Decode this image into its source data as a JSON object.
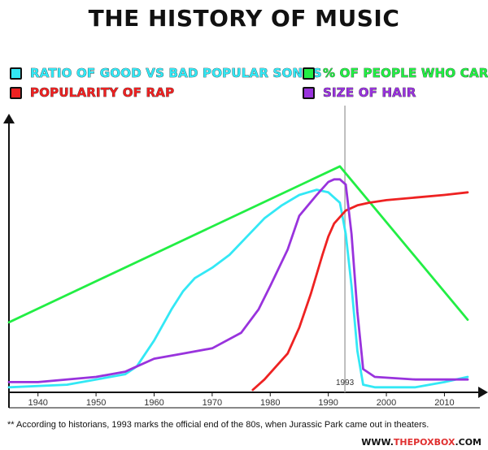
{
  "chart_data": {
    "type": "line",
    "title": "THE HISTORY OF MUSIC",
    "xlabel": "",
    "ylabel": "",
    "xlim": [
      1935,
      2014
    ],
    "ylim": [
      0,
      100
    ],
    "x_ticks": [
      1940,
      1950,
      1960,
      1970,
      1980,
      1990,
      2000,
      2010
    ],
    "grid": false,
    "legend_position": "top",
    "annotation": {
      "x": 1993,
      "label": "1993"
    },
    "series": [
      {
        "name": "RATIO OF GOOD VS BAD POPULAR SONGS",
        "color": "#33e8f5",
        "x": [
          1935,
          1945,
          1955,
          1957,
          1960,
          1963,
          1965,
          1967,
          1970,
          1973,
          1976,
          1979,
          1982,
          1985,
          1988,
          1990,
          1992,
          1993,
          1994,
          1995,
          1996,
          1998,
          2002,
          2005,
          2010,
          2014
        ],
        "y": [
          1,
          2,
          6,
          9,
          19,
          31,
          38,
          43,
          47,
          52,
          59,
          66,
          71,
          75,
          77,
          76,
          72,
          60,
          40,
          15,
          2,
          1,
          1,
          1,
          3,
          5
        ]
      },
      {
        "name": "% OF PEOPLE WHO CARE",
        "color": "#22ee44",
        "x": [
          1935,
          1992,
          2014
        ],
        "y": [
          26,
          86,
          27
        ]
      },
      {
        "name": "POPULARITY OF RAP",
        "color": "#ee2222",
        "x": [
          1977,
          1979,
          1981,
          1983,
          1985,
          1987,
          1989,
          1990,
          1991,
          1993,
          1995,
          1997,
          2000,
          2005,
          2010,
          2014
        ],
        "y": [
          0,
          4,
          9,
          14,
          24,
          37,
          52,
          59,
          64,
          69,
          71,
          72,
          73,
          74,
          75,
          76
        ]
      },
      {
        "name": "SIZE OF HAIR",
        "color": "#9933dd",
        "x": [
          1935,
          1940,
          1950,
          1955,
          1957,
          1960,
          1965,
          1970,
          1975,
          1978,
          1980,
          1983,
          1985,
          1988,
          1990,
          1991,
          1992,
          1993,
          1994,
          1995,
          1996,
          1998,
          2005,
          2012,
          2014
        ],
        "y": [
          3,
          3,
          5,
          7,
          9,
          12,
          14,
          16,
          22,
          31,
          40,
          54,
          67,
          75,
          80,
          81,
          81,
          79,
          60,
          30,
          8,
          5,
          4,
          4,
          4
        ]
      }
    ],
    "footnote": "** According to historians, 1993 marks the official end of the 80s, when Jurassic Park came out in theaters."
  },
  "legend": [
    {
      "key": "good_songs",
      "label": "RATIO OF GOOD VS BAD POPULAR SONGS",
      "color": "#33e8f5"
    },
    {
      "key": "care",
      "label": "% OF PEOPLE WHO CARE",
      "color": "#22ee44"
    },
    {
      "key": "rap",
      "label": "POPULARITY OF RAP",
      "color": "#ee2222"
    },
    {
      "key": "hair",
      "label": "SIZE OF HAIR",
      "color": "#9933dd"
    }
  ],
  "watermark": {
    "prefix": "WWW.",
    "brand": "THEPOXBOX",
    "suffix": ".COM"
  }
}
